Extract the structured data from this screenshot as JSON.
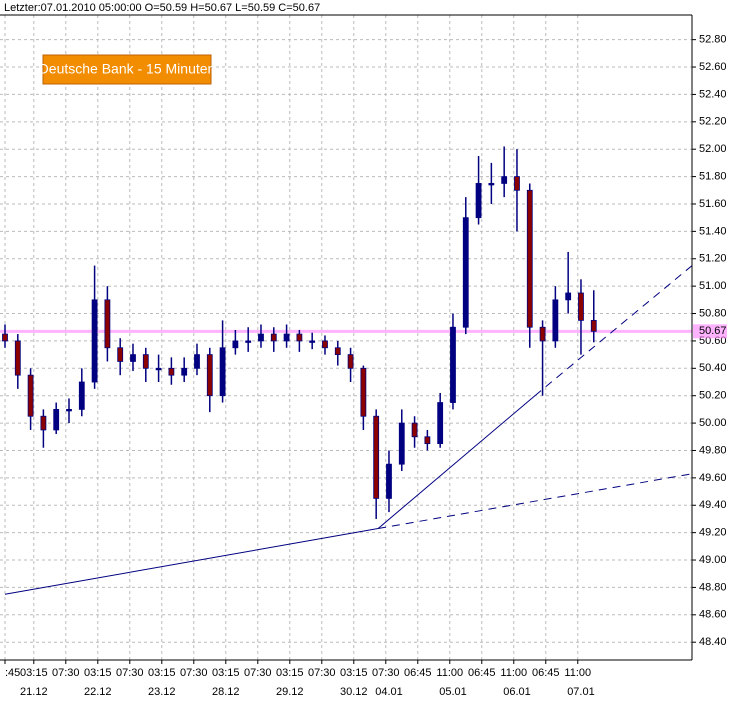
{
  "chart_data": {
    "type": "candlestick",
    "header": "Letzter:07.01.2010 05:00:00 O=50.59 H=50.67 L=50.59 C=50.67",
    "title": "Deutsche Bank - 15 Minuten",
    "x": [
      0,
      4,
      8,
      12,
      16,
      20,
      24,
      28,
      32,
      36,
      40,
      44,
      48,
      52,
      56,
      60,
      64,
      68,
      72,
      76,
      80,
      84,
      88,
      92,
      96,
      100,
      104,
      108,
      112,
      116,
      120,
      124,
      128,
      132,
      136,
      140,
      144,
      148,
      152,
      156,
      160,
      164,
      168,
      172,
      176,
      180,
      184
    ],
    "open": [
      50.65,
      50.6,
      50.35,
      50.05,
      49.95,
      50.1,
      50.1,
      50.3,
      50.9,
      50.55,
      50.45,
      50.5,
      50.4,
      50.4,
      50.35,
      50.4,
      50.5,
      50.2,
      50.55,
      50.6,
      50.6,
      50.65,
      50.6,
      50.65,
      50.6,
      50.6,
      50.55,
      50.5,
      50.4,
      50.05,
      49.45,
      49.7,
      50.0,
      49.9,
      49.85,
      50.15,
      50.7,
      51.5,
      51.75,
      51.75,
      51.8,
      51.7,
      50.7,
      50.6,
      50.9,
      50.95,
      50.75
    ],
    "high": [
      50.72,
      50.65,
      50.4,
      50.1,
      50.15,
      50.18,
      50.4,
      51.15,
      51.0,
      50.62,
      50.58,
      50.55,
      50.5,
      50.48,
      50.48,
      50.58,
      50.55,
      50.75,
      50.68,
      50.7,
      50.72,
      50.7,
      50.72,
      50.68,
      50.66,
      50.64,
      50.6,
      50.55,
      50.42,
      50.1,
      49.8,
      50.1,
      50.05,
      49.95,
      50.22,
      50.8,
      51.65,
      51.95,
      51.9,
      52.02,
      52.0,
      51.75,
      50.75,
      51.0,
      51.25,
      51.05,
      50.97
    ],
    "low": [
      50.55,
      50.25,
      49.95,
      49.82,
      49.92,
      50.0,
      50.05,
      50.25,
      50.45,
      50.35,
      50.38,
      50.3,
      50.3,
      50.28,
      50.3,
      50.35,
      50.08,
      50.15,
      50.5,
      50.52,
      50.55,
      50.52,
      50.55,
      50.52,
      50.54,
      50.5,
      50.42,
      50.3,
      49.95,
      49.3,
      49.35,
      49.65,
      49.82,
      49.8,
      49.82,
      50.1,
      50.65,
      51.45,
      51.6,
      51.65,
      51.4,
      50.55,
      50.2,
      50.55,
      50.8,
      50.5,
      50.59
    ],
    "close": [
      50.6,
      50.35,
      50.05,
      49.95,
      50.1,
      50.1,
      50.3,
      50.9,
      50.55,
      50.45,
      50.5,
      50.4,
      50.4,
      50.35,
      50.4,
      50.5,
      50.2,
      50.55,
      50.6,
      50.6,
      50.65,
      50.6,
      50.65,
      50.6,
      50.6,
      50.55,
      50.5,
      50.4,
      50.05,
      49.45,
      49.7,
      50.0,
      49.9,
      49.85,
      50.15,
      50.7,
      51.5,
      51.75,
      51.75,
      51.8,
      51.7,
      50.7,
      50.6,
      50.9,
      50.95,
      50.75,
      50.67
    ],
    "up_color": "#000080",
    "down_color": "#8b0000",
    "price_line": 50.67,
    "price_line_color": "#ff80ff",
    "trendlines": [
      {
        "x": [
          0,
          116.6,
          214.7
        ],
        "y": [
          48.75,
          49.23,
          49.63
        ],
        "color": "#000080"
      },
      {
        "x": [
          116.6,
          165.6,
          214.7
        ],
        "y": [
          49.23,
          50.2,
          51.15
        ],
        "color": "#000080"
      }
    ],
    "xlim": [
      0,
      214.7
    ],
    "ylim": [
      48.27,
      52.98
    ],
    "xticks": [
      {
        "value": 0,
        "label": ":45"
      },
      {
        "value": 9,
        "label": "03:15"
      },
      {
        "value": 19,
        "label": "07:30"
      },
      {
        "value": 29,
        "label": "03:15"
      },
      {
        "value": 39,
        "label": "07:30"
      },
      {
        "value": 49,
        "label": "03:15"
      },
      {
        "value": 59,
        "label": "07:30"
      },
      {
        "value": 69,
        "label": "03:15"
      },
      {
        "value": 79,
        "label": "07:30"
      },
      {
        "value": 89,
        "label": "03:15"
      },
      {
        "value": 99,
        "label": "07:30"
      },
      {
        "value": 109,
        "label": "03:15"
      },
      {
        "value": 119,
        "label": "07:30"
      },
      {
        "value": 129,
        "label": "06:45"
      },
      {
        "value": 139,
        "label": "11:00"
      },
      {
        "value": 149,
        "label": "06:45"
      },
      {
        "value": 159,
        "label": "11:00"
      },
      {
        "value": 169,
        "label": "06:45"
      },
      {
        "value": 179,
        "label": "11:00"
      }
    ],
    "date_labels": [
      {
        "value": 9,
        "label": "21.12"
      },
      {
        "value": 29,
        "label": "22.12"
      },
      {
        "value": 49,
        "label": "23.12"
      },
      {
        "value": 69,
        "label": "28.12"
      },
      {
        "value": 89,
        "label": "29.12"
      },
      {
        "value": 109,
        "label": "30.12"
      },
      {
        "value": 120,
        "label": "04.01"
      },
      {
        "value": 140,
        "label": "05.01"
      },
      {
        "value": 160,
        "label": "06.01"
      },
      {
        "value": 180,
        "label": "07.01"
      }
    ],
    "yticks": [
      {
        "value": 48.4,
        "label": "48.40"
      },
      {
        "value": 48.6,
        "label": "48.60"
      },
      {
        "value": 48.8,
        "label": "48.80"
      },
      {
        "value": 49,
        "label": "49.00"
      },
      {
        "value": 49.2,
        "label": "49.20"
      },
      {
        "value": 49.4,
        "label": "49.40"
      },
      {
        "value": 49.6,
        "label": "49.60"
      },
      {
        "value": 49.8,
        "label": "49.80"
      },
      {
        "value": 50,
        "label": "50.00"
      },
      {
        "value": 50.2,
        "label": "50.20"
      },
      {
        "value": 50.4,
        "label": "50.40"
      },
      {
        "value": 50.6,
        "label": "50.60"
      },
      {
        "value": 50.8,
        "label": "50.80"
      },
      {
        "value": 51,
        "label": "51.00"
      },
      {
        "value": 51.2,
        "label": "51.20"
      },
      {
        "value": 51.4,
        "label": "51.40"
      },
      {
        "value": 51.6,
        "label": "51.60"
      },
      {
        "value": 51.8,
        "label": "51.80"
      },
      {
        "value": 52,
        "label": "52.00"
      },
      {
        "value": 52.2,
        "label": "52.20"
      },
      {
        "value": 52.4,
        "label": "52.40"
      },
      {
        "value": 52.6,
        "label": "52.60"
      },
      {
        "value": 52.8,
        "label": "52.80"
      }
    ],
    "grid": true
  }
}
